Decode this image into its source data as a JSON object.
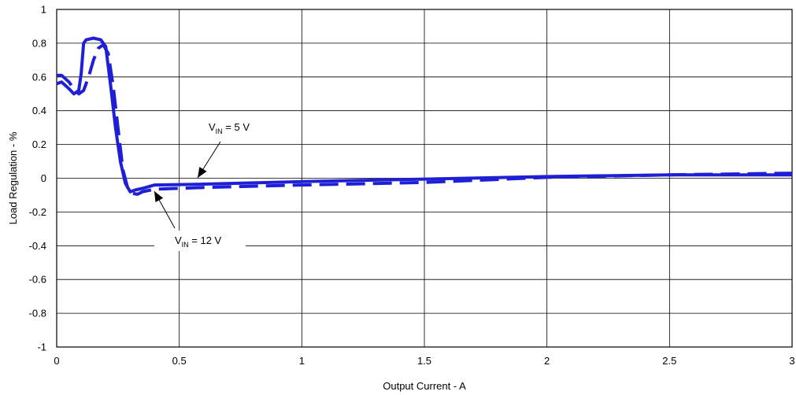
{
  "chart_data": {
    "type": "line",
    "xlabel": "Output Current - A",
    "ylabel": "Load Regulation  - %",
    "xlim": [
      0,
      3
    ],
    "ylim": [
      -1,
      1
    ],
    "grid": true,
    "xticks": [
      {
        "value": 0,
        "label": "0"
      },
      {
        "value": 0.5,
        "label": "0.5"
      },
      {
        "value": 1,
        "label": "1"
      },
      {
        "value": 1.5,
        "label": "1.5"
      },
      {
        "value": 2,
        "label": "2"
      },
      {
        "value": 2.5,
        "label": "2.5"
      },
      {
        "value": 3,
        "label": "3"
      }
    ],
    "yticks": [
      {
        "value": 1,
        "label": "1"
      },
      {
        "value": 0.8,
        "label": "0.8"
      },
      {
        "value": 0.6,
        "label": "0.6"
      },
      {
        "value": 0.4,
        "label": "0.4"
      },
      {
        "value": 0.2,
        "label": "0.2"
      },
      {
        "value": 0,
        "label": "0"
      },
      {
        "value": -0.2,
        "label": "-0.2"
      },
      {
        "value": -0.4,
        "label": "-0.4"
      },
      {
        "value": -0.6,
        "label": "-0.6"
      },
      {
        "value": -0.8,
        "label": "-0.8"
      },
      {
        "value": -1,
        "label": "-1"
      }
    ],
    "series": [
      {
        "style": "solid",
        "color": "#1f1fd6",
        "x": [
          0,
          0.02,
          0.05,
          0.07,
          0.09,
          0.1,
          0.11,
          0.12,
          0.15,
          0.18,
          0.2,
          0.22,
          0.24,
          0.26,
          0.28,
          0.3,
          0.32,
          0.35,
          0.4,
          0.6,
          1,
          1.5,
          2,
          2.5,
          3
        ],
        "y": [
          0.56,
          0.57,
          0.53,
          0.5,
          0.52,
          0.62,
          0.8,
          0.82,
          0.83,
          0.82,
          0.78,
          0.55,
          0.3,
          0.1,
          -0.03,
          -0.08,
          -0.07,
          -0.06,
          -0.04,
          -0.035,
          -0.02,
          -0.005,
          0.01,
          0.02,
          0.02
        ]
      },
      {
        "style": "dashed",
        "color": "#1f1fd6",
        "x": [
          0,
          0.02,
          0.05,
          0.07,
          0.09,
          0.11,
          0.13,
          0.15,
          0.17,
          0.19,
          0.21,
          0.23,
          0.25,
          0.27,
          0.29,
          0.31,
          0.33,
          0.35,
          0.4,
          0.6,
          1,
          1.5,
          2,
          2.5,
          3
        ],
        "y": [
          0.61,
          0.61,
          0.57,
          0.53,
          0.5,
          0.52,
          0.6,
          0.7,
          0.77,
          0.79,
          0.74,
          0.55,
          0.3,
          0.05,
          -0.06,
          -0.09,
          -0.095,
          -0.08,
          -0.065,
          -0.055,
          -0.04,
          -0.025,
          0.005,
          0.02,
          0.03
        ]
      }
    ],
    "annotations": [
      {
        "prefix": "V",
        "sub": "IN",
        "suffix": " = 5 V"
      },
      {
        "prefix": "V",
        "sub": "IN",
        "suffix": " = 12 V"
      }
    ]
  }
}
